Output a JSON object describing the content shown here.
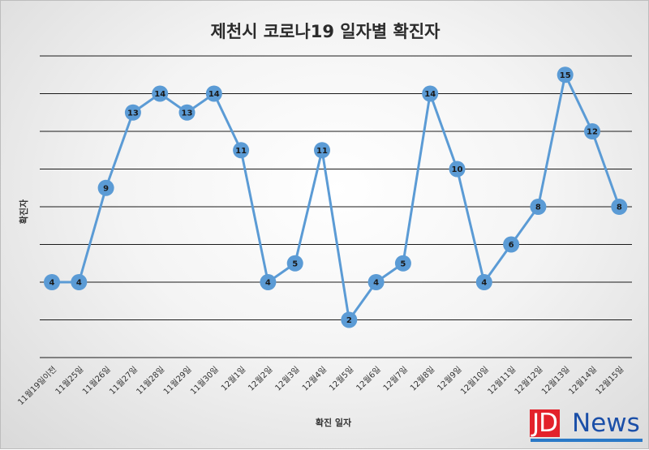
{
  "chart_data": {
    "type": "line",
    "title": "제천시 코로나19 일자별 확진자",
    "xlabel": "확진 일자",
    "ylabel": "확진자",
    "categories": [
      "11월19일이전",
      "11월25일",
      "11월26일",
      "11월27일",
      "11월28일",
      "11월29일",
      "11월30일",
      "12월1일",
      "12월2일",
      "12월3일",
      "12월4일",
      "12월5일",
      "12월6일",
      "12월7일",
      "12월8일",
      "12월9일",
      "12월10일",
      "12월11일",
      "12월12일",
      "12월13일",
      "12월14일",
      "12월15일"
    ],
    "series": [
      {
        "values": [
          4,
          4,
          9,
          13,
          14,
          13,
          14,
          11,
          4,
          5,
          11,
          2,
          4,
          5,
          14,
          10,
          4,
          6,
          8,
          15,
          12,
          8
        ]
      }
    ],
    "ylim": [
      0,
      16
    ],
    "grid": true,
    "data_labels": true,
    "line_color": "#5b9bd5",
    "marker_color": "#5b9bd5"
  },
  "logo": {
    "jd": "JD",
    "news": "News"
  },
  "colors": {
    "logo_red": "#e3222b",
    "logo_blue": "#1b4fa8"
  }
}
